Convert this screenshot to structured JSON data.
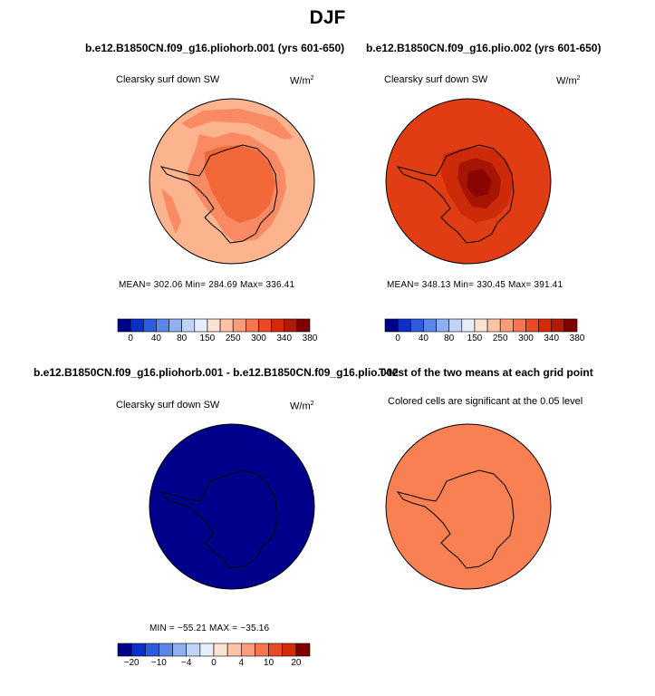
{
  "figure": {
    "title": "DJF"
  },
  "panels": [
    {
      "id": "case1",
      "title": "b.e12.B1850CN.f09_g16.pliohorb.001 (yrs 601-650)",
      "variable": "Clearsky surf down SW",
      "units_base": "W/m",
      "units_exp": "2",
      "stats": "MEAN= 302.06   Min= 284.69   Max= 336.41",
      "colorbar_id": "absolute"
    },
    {
      "id": "case2",
      "title": "b.e12.B1850CN.f09_g16.plio.002 (yrs 601-650)",
      "variable": "Clearsky surf down SW",
      "units_base": "W/m",
      "units_exp": "2",
      "stats": "MEAN= 348.13   Min= 330.45   Max= 391.41",
      "colorbar_id": "absolute"
    },
    {
      "id": "difference",
      "title": "b.e12.B1850CN.f09_g16.pliohorb.001 - b.e12.B1850CN.f09_g16.plio.002",
      "variable": "Clearsky surf down SW",
      "units_base": "W/m",
      "units_exp": "2",
      "stats": "MIN = −55.21  MAX = −35.16",
      "colorbar_id": "difference"
    },
    {
      "id": "ttest",
      "title": "T-test of the two means at each grid point",
      "variable": "Colored cells are significant at the 0.05 level"
    }
  ],
  "colorbars": {
    "absolute": {
      "ticks": [
        "0",
        "40",
        "80",
        "150",
        "250",
        "300",
        "340",
        "380"
      ],
      "colors": [
        "#00008b",
        "#0c2fc8",
        "#2c5bdb",
        "#5b86e6",
        "#8eb0ef",
        "#bfd4f6",
        "#e6eefb",
        "#fbe2d1",
        "#fcc3a6",
        "#fb9d7a",
        "#f7744f",
        "#eb4a26",
        "#d52b0a",
        "#b01a05",
        "#7f0000"
      ]
    },
    "difference": {
      "ticks": [
        "−20",
        "−10",
        "−4",
        "0",
        "4",
        "10",
        "20"
      ],
      "colors": [
        "#00008b",
        "#0c2fc8",
        "#2c5bdb",
        "#5b86e6",
        "#8eb0ef",
        "#bfd4f6",
        "#e6eefb",
        "#fbe2d1",
        "#fcc3a6",
        "#fb9d7a",
        "#f7744f",
        "#eb4a26",
        "#d52b0a",
        "#7f0000"
      ]
    }
  },
  "map_colors": {
    "case1": {
      "ocean": "#fcb48e",
      "ring": "#f98a63",
      "interior": "#f36838",
      "warm": "#f98a63"
    },
    "case2": {
      "ocean": "#e13d14",
      "ring": "#cc2a08",
      "interior": "#a51502",
      "core": "#8a0400"
    },
    "difference": {
      "fill": "#00008b"
    },
    "ttest": {
      "fill": "#f98052"
    }
  },
  "chart_data": [
    {
      "type": "heatmap",
      "title": "b.e12.B1850CN.f09_g16.pliohorb.001 (yrs 601-650)",
      "variable": "Clearsky surf down SW",
      "units": "W/m2",
      "projection": "south polar stereographic",
      "mean": 302.06,
      "min": 284.69,
      "max": 336.41,
      "contour_levels": [
        0,
        40,
        80,
        150,
        250,
        300,
        340,
        380
      ]
    },
    {
      "type": "heatmap",
      "title": "b.e12.B1850CN.f09_g16.plio.002 (yrs 601-650)",
      "variable": "Clearsky surf down SW",
      "units": "W/m2",
      "projection": "south polar stereographic",
      "mean": 348.13,
      "min": 330.45,
      "max": 391.41,
      "contour_levels": [
        0,
        40,
        80,
        150,
        250,
        300,
        340,
        380
      ]
    },
    {
      "type": "heatmap",
      "title": "b.e12.B1850CN.f09_g16.pliohorb.001 - b.e12.B1850CN.f09_g16.plio.002",
      "variable": "Clearsky surf down SW",
      "units": "W/m2",
      "projection": "south polar stereographic",
      "min": -55.21,
      "max": -35.16,
      "contour_levels": [
        -20,
        -10,
        -4,
        0,
        4,
        10,
        20
      ]
    },
    {
      "type": "heatmap",
      "title": "T-test of the two means at each grid point",
      "note": "Colored cells are significant at the 0.05 level",
      "significance_level": 0.05
    }
  ]
}
